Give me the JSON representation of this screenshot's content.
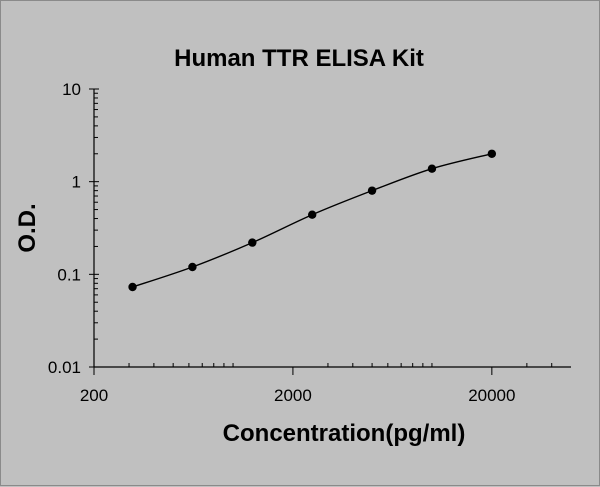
{
  "chart_data": {
    "type": "scatter",
    "title": "Human TTR ELISA Kit",
    "xlabel": "Concentration(pg/ml)",
    "ylabel": "O.D.",
    "x_scale": "log",
    "y_scale": "log",
    "xlim": [
      200,
      50000
    ],
    "ylim": [
      0.01,
      10
    ],
    "x_ticks": [
      "200",
      "2000",
      "20000"
    ],
    "y_ticks": [
      "0.01",
      "0.1",
      "1",
      "10"
    ],
    "grid": false,
    "legend": "none",
    "marker_color": "#000000",
    "line_color": "#000000",
    "background_color": "#c0c0c0",
    "series": [
      {
        "x": [
          312.5,
          625,
          1250,
          2500,
          5000,
          10000,
          20000
        ],
        "y": [
          0.073,
          0.12,
          0.22,
          0.44,
          0.8,
          1.38,
          2.0
        ],
        "fit": "smooth-curve"
      }
    ]
  }
}
